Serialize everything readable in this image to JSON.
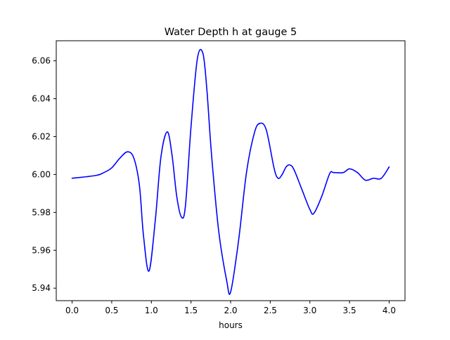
{
  "chart_data": {
    "type": "line",
    "title": "Water Depth h at gauge 5",
    "xlabel": "hours",
    "ylabel": "",
    "xlim": [
      -0.2,
      4.2
    ],
    "ylim": [
      5.9334,
      6.0706
    ],
    "xticks": [
      0.0,
      0.5,
      1.0,
      1.5,
      2.0,
      2.5,
      3.0,
      3.5,
      4.0
    ],
    "xtick_labels": [
      "0.0",
      "0.5",
      "1.0",
      "1.5",
      "2.0",
      "2.5",
      "3.0",
      "3.5",
      "4.0"
    ],
    "yticks": [
      5.94,
      5.96,
      5.98,
      6.0,
      6.02,
      6.04,
      6.06
    ],
    "ytick_labels": [
      "5.94",
      "5.96",
      "5.98",
      "6.00",
      "6.02",
      "6.04",
      "6.06"
    ],
    "grid": false,
    "legend": "none",
    "series": [
      {
        "color": "#0000ff",
        "x": [
          0.0,
          0.3,
          0.4,
          0.5,
          0.6,
          0.7,
          0.78,
          0.85,
          0.9,
          0.97,
          1.05,
          1.12,
          1.2,
          1.26,
          1.32,
          1.38,
          1.43,
          1.5,
          1.58,
          1.65,
          1.7,
          1.76,
          1.85,
          1.95,
          2.0,
          2.1,
          2.2,
          2.3,
          2.37,
          2.45,
          2.55,
          2.6,
          2.65,
          2.7,
          2.75,
          2.8,
          2.9,
          3.0,
          3.05,
          3.15,
          3.25,
          3.3,
          3.42,
          3.5,
          3.6,
          3.7,
          3.8,
          3.9,
          4.0
        ],
        "y": [
          5.998,
          5.9995,
          6.001,
          6.0035,
          6.0085,
          6.012,
          6.0085,
          5.994,
          5.968,
          5.949,
          5.976,
          6.009,
          6.0225,
          6.0105,
          5.9885,
          5.9775,
          5.9835,
          6.025,
          6.061,
          6.064,
          6.045,
          6.01,
          5.97,
          5.944,
          5.938,
          5.965,
          6.001,
          6.022,
          6.027,
          6.0235,
          6.003,
          5.998,
          6.0,
          6.004,
          6.005,
          6.0025,
          5.992,
          5.9815,
          5.9795,
          5.9885,
          6.0005,
          6.001,
          6.001,
          6.003,
          6.001,
          5.997,
          5.998,
          5.998,
          6.004
        ]
      }
    ]
  }
}
